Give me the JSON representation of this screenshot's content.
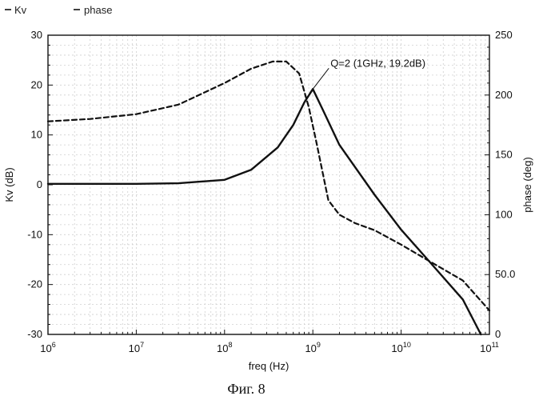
{
  "chart_data": {
    "type": "line",
    "legend": {
      "placement": "top-left",
      "entries": [
        "Kv",
        "phase"
      ]
    },
    "xlabel": "freq (Hz)",
    "ylabel": "Kv (dB)",
    "y2label": "phase (deg)",
    "xscale": "log",
    "xlim": [
      1000000,
      100000000000
    ],
    "ylim": [
      -30,
      30
    ],
    "y2lim": [
      0,
      250
    ],
    "grid": true,
    "x_ticks": [
      {
        "value": 1000000,
        "base": "10",
        "exp": "6"
      },
      {
        "value": 10000000,
        "base": "10",
        "exp": "7"
      },
      {
        "value": 100000000,
        "base": "10",
        "exp": "8"
      },
      {
        "value": 1000000000,
        "base": "10",
        "exp": "9"
      },
      {
        "value": 10000000000,
        "base": "10",
        "exp": "10"
      },
      {
        "value": 100000000000,
        "base": "10",
        "exp": "11"
      }
    ],
    "y_ticks": [
      {
        "value": 30,
        "label": "30"
      },
      {
        "value": 20,
        "label": "20"
      },
      {
        "value": 10,
        "label": "10"
      },
      {
        "value": 0,
        "label": "0"
      },
      {
        "value": -10,
        "label": "-10"
      },
      {
        "value": -20,
        "label": "-20"
      },
      {
        "value": -30,
        "label": "-30"
      }
    ],
    "y2_ticks": [
      {
        "value": 250,
        "label": "250"
      },
      {
        "value": 200,
        "label": "200"
      },
      {
        "value": 150,
        "label": "150"
      },
      {
        "value": 100,
        "label": "100"
      },
      {
        "value": 50,
        "label": "50.0"
      },
      {
        "value": 0,
        "label": "0"
      }
    ],
    "series": [
      {
        "name": "Kv",
        "axis": "left",
        "style": "solid",
        "x": [
          1000000,
          10000000,
          30000000,
          100000000,
          200000000,
          400000000,
          600000000,
          800000000,
          1000000000,
          1300000000,
          2000000000,
          5000000000,
          10000000000,
          20000000000,
          50000000000,
          80000000000
        ],
        "y": [
          0.2,
          0.2,
          0.3,
          1.0,
          3.0,
          7.5,
          12.0,
          16.5,
          19.2,
          15.0,
          8.0,
          -2.0,
          -9.0,
          -15.0,
          -23.0,
          -30.0
        ]
      },
      {
        "name": "phase",
        "axis": "right",
        "style": "dashed",
        "x": [
          1000000,
          3000000,
          10000000,
          30000000,
          100000000,
          200000000,
          350000000,
          500000000,
          700000000,
          900000000,
          1100000000,
          1500000000,
          2000000000,
          3000000000,
          5000000000,
          10000000000,
          20000000000,
          50000000000,
          100000000000
        ],
        "y": [
          178,
          180,
          184,
          192,
          210,
          222,
          228,
          228,
          218,
          190,
          160,
          112,
          100,
          93,
          87,
          75,
          62,
          45,
          20
        ]
      }
    ],
    "annotations": [
      {
        "text": "Q=2 (1GHz, 19.2dB)",
        "x": 1000000000,
        "y": 19.2
      }
    ]
  },
  "caption": "Фиг. 8"
}
